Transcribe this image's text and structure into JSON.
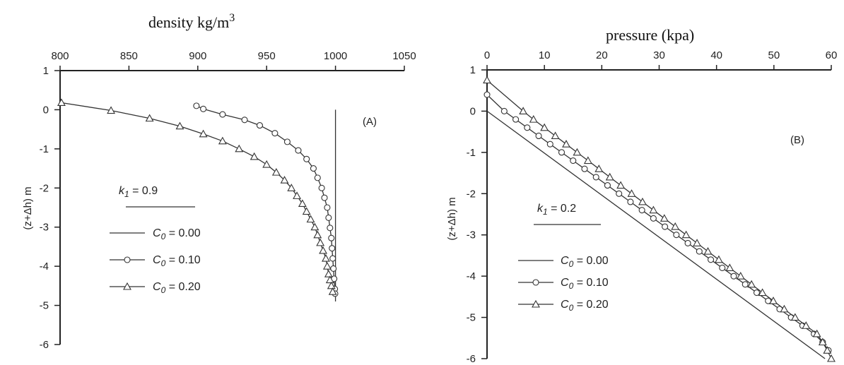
{
  "chart_data": [
    {
      "type": "line",
      "panel_label": "(A)",
      "title": "density kg/m",
      "title_sup": "3",
      "xlabel": "density kg/m3",
      "ylabel": "(z+Δh) m",
      "xlim": [
        800,
        1050
      ],
      "ylim": [
        -6,
        1
      ],
      "xticks": [
        "800",
        "850",
        "900",
        "950",
        "1000",
        "1050"
      ],
      "yticks": [
        "1",
        "0",
        "-1",
        "-2",
        "-3",
        "-4",
        "-5",
        "-6"
      ],
      "x_axis_position": "top",
      "grid": false,
      "k_label": {
        "symbol": "k",
        "sub": "1",
        "rest": " = 0.9"
      },
      "series": [
        {
          "name": "C0 = 0.00",
          "label": {
            "symbol": "C",
            "sub": "0",
            "rest": " = 0.00"
          },
          "marker": "none",
          "points": [
            [
              1000,
              0.0
            ],
            [
              1000,
              -4.9
            ]
          ]
        },
        {
          "name": "C0 = 0.10",
          "label": {
            "symbol": "C",
            "sub": "0",
            "rest": " = 0.10"
          },
          "marker": "circle",
          "points": [
            [
              899,
              0.1
            ],
            [
              904,
              0.02
            ],
            [
              918,
              -0.12
            ],
            [
              934,
              -0.26
            ],
            [
              945,
              -0.4
            ],
            [
              956,
              -0.6
            ],
            [
              965,
              -0.82
            ],
            [
              973,
              -1.04
            ],
            [
              979,
              -1.26
            ],
            [
              984,
              -1.5
            ],
            [
              987,
              -1.74
            ],
            [
              990,
              -2.0
            ],
            [
              992,
              -2.25
            ],
            [
              994,
              -2.5
            ],
            [
              995,
              -2.76
            ],
            [
              996,
              -3.02
            ],
            [
              997,
              -3.28
            ],
            [
              997.5,
              -3.54
            ],
            [
              998,
              -3.8
            ],
            [
              998.5,
              -4.06
            ],
            [
              999,
              -4.32
            ],
            [
              999.5,
              -4.58
            ],
            [
              999.7,
              -4.7
            ]
          ]
        },
        {
          "name": "C0 = 0.20",
          "label": {
            "symbol": "C",
            "sub": "0",
            "rest": " = 0.20"
          },
          "marker": "triangle",
          "points": [
            [
              801,
              0.18
            ],
            [
              837,
              -0.02
            ],
            [
              865,
              -0.22
            ],
            [
              887,
              -0.42
            ],
            [
              904,
              -0.62
            ],
            [
              918,
              -0.8
            ],
            [
              930,
              -1.0
            ],
            [
              941,
              -1.2
            ],
            [
              950,
              -1.4
            ],
            [
              957,
              -1.6
            ],
            [
              963,
              -1.8
            ],
            [
              968,
              -2.0
            ],
            [
              972,
              -2.2
            ],
            [
              976,
              -2.4
            ],
            [
              979,
              -2.6
            ],
            [
              982,
              -2.8
            ],
            [
              985,
              -3.0
            ],
            [
              987,
              -3.2
            ],
            [
              989,
              -3.4
            ],
            [
              991,
              -3.6
            ],
            [
              993,
              -3.8
            ],
            [
              994,
              -4.0
            ],
            [
              995,
              -4.2
            ],
            [
              996,
              -4.35
            ],
            [
              997,
              -4.5
            ],
            [
              998,
              -4.65
            ]
          ]
        }
      ]
    },
    {
      "type": "line",
      "panel_label": "(B)",
      "title": "pressure (kpa)",
      "xlabel": "pressure (kpa)",
      "ylabel": "(z+Δh) m",
      "xlim": [
        0,
        60
      ],
      "ylim": [
        -6,
        1
      ],
      "xticks": [
        "0",
        "10",
        "20",
        "30",
        "40",
        "50",
        "60"
      ],
      "yticks": [
        "1",
        "0",
        "-1",
        "-2",
        "-3",
        "-4",
        "-5",
        "-6"
      ],
      "x_axis_position": "top",
      "grid": false,
      "k_label": {
        "symbol": "k",
        "sub": "1",
        "rest": " = 0.2"
      },
      "series": [
        {
          "name": "C0 = 0.00",
          "label": {
            "symbol": "C",
            "sub": "0",
            "rest": " = 0.00"
          },
          "marker": "none",
          "points": [
            [
              0,
              0.0
            ],
            [
              58.9,
              -6.0
            ]
          ]
        },
        {
          "name": "C0 = 0.10",
          "label": {
            "symbol": "C",
            "sub": "0",
            "rest": " = 0.10"
          },
          "marker": "circle",
          "points": [
            [
              0,
              0.4
            ],
            [
              3,
              0.0
            ],
            [
              5,
              -0.2
            ],
            [
              7,
              -0.4
            ],
            [
              9,
              -0.6
            ],
            [
              11,
              -0.8
            ],
            [
              13,
              -1.0
            ],
            [
              15,
              -1.2
            ],
            [
              17,
              -1.4
            ],
            [
              19,
              -1.6
            ],
            [
              21,
              -1.8
            ],
            [
              23,
              -2.0
            ],
            [
              25,
              -2.2
            ],
            [
              27,
              -2.4
            ],
            [
              29,
              -2.6
            ],
            [
              31,
              -2.8
            ],
            [
              33,
              -3.0
            ],
            [
              35,
              -3.2
            ],
            [
              37,
              -3.4
            ],
            [
              39,
              -3.6
            ],
            [
              41,
              -3.8
            ],
            [
              43,
              -4.0
            ],
            [
              45,
              -4.2
            ],
            [
              47,
              -4.4
            ],
            [
              49,
              -4.6
            ],
            [
              51,
              -4.8
            ],
            [
              53,
              -5.0
            ],
            [
              55,
              -5.2
            ],
            [
              57,
              -5.4
            ],
            [
              58.5,
              -5.6
            ],
            [
              59.5,
              -5.8
            ]
          ]
        },
        {
          "name": "C0 = 0.20",
          "label": {
            "symbol": "C",
            "sub": "0",
            "rest": " = 0.20"
          },
          "marker": "triangle",
          "points": [
            [
              0,
              0.75
            ],
            [
              6.3,
              0.0
            ],
            [
              8.1,
              -0.2
            ],
            [
              10,
              -0.4
            ],
            [
              11.9,
              -0.6
            ],
            [
              13.8,
              -0.8
            ],
            [
              15.7,
              -1.0
            ],
            [
              17.6,
              -1.2
            ],
            [
              19.5,
              -1.4
            ],
            [
              21.4,
              -1.6
            ],
            [
              23.3,
              -1.8
            ],
            [
              25.2,
              -2.0
            ],
            [
              27.1,
              -2.2
            ],
            [
              29,
              -2.4
            ],
            [
              30.9,
              -2.6
            ],
            [
              32.8,
              -2.8
            ],
            [
              34.7,
              -3.0
            ],
            [
              36.6,
              -3.2
            ],
            [
              38.5,
              -3.4
            ],
            [
              40.4,
              -3.6
            ],
            [
              42.3,
              -3.8
            ],
            [
              44.2,
              -4.0
            ],
            [
              46.1,
              -4.2
            ],
            [
              48,
              -4.4
            ],
            [
              49.9,
              -4.6
            ],
            [
              51.8,
              -4.8
            ],
            [
              53.7,
              -5.0
            ],
            [
              55.6,
              -5.2
            ],
            [
              57.5,
              -5.4
            ],
            [
              58.5,
              -5.6
            ],
            [
              59.3,
              -5.8
            ],
            [
              60,
              -6.0
            ]
          ]
        }
      ]
    }
  ]
}
